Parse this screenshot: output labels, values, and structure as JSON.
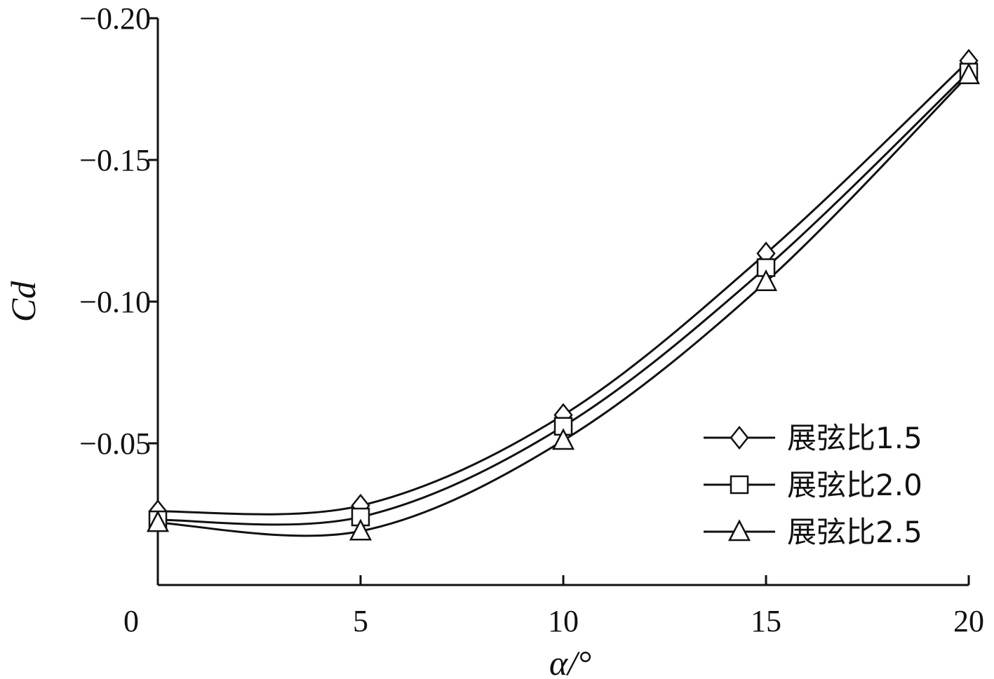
{
  "chart_data": {
    "type": "line",
    "title": "",
    "xlabel": "α/°",
    "ylabel": "Cd",
    "x": [
      0,
      5,
      10,
      15,
      20
    ],
    "xlim": [
      0,
      20
    ],
    "ylim": [
      0,
      -0.2
    ],
    "x_ticks": [
      "0",
      "5",
      "10",
      "15",
      "20"
    ],
    "y_ticks": [
      "−0.20",
      "−0.15",
      "−0.10",
      "−0.05"
    ],
    "y_tick_values": [
      -0.2,
      -0.15,
      -0.1,
      -0.05
    ],
    "grid": false,
    "legend_position": "bottom-right",
    "series": [
      {
        "name": "展弦比1.5",
        "marker": "diamond",
        "values": [
          -0.026,
          -0.028,
          -0.06,
          -0.117,
          -0.185
        ]
      },
      {
        "name": "展弦比2.0",
        "marker": "square",
        "values": [
          -0.023,
          -0.024,
          -0.056,
          -0.112,
          -0.181
        ]
      },
      {
        "name": "展弦比2.5",
        "marker": "triangle",
        "values": [
          -0.022,
          -0.019,
          -0.051,
          -0.107,
          -0.18
        ]
      }
    ],
    "line_color": "#111111"
  }
}
